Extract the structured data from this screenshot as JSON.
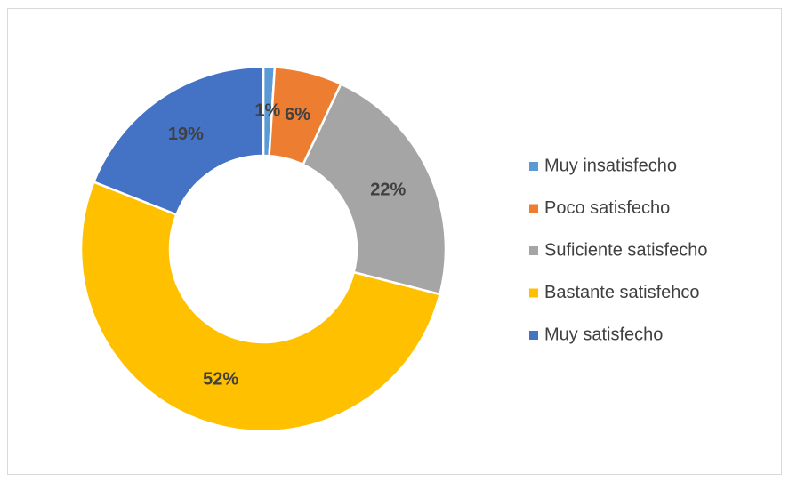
{
  "chart_data": {
    "type": "donut",
    "categories": [
      "Muy insatisfecho",
      "Poco satisfecho",
      "Suficiente satisfecho",
      "Bastante satisfehco",
      "Muy satisfecho"
    ],
    "values": [
      1,
      6,
      22,
      52,
      19
    ],
    "value_labels": [
      "1%",
      "6%",
      "22%",
      "52%",
      "19%"
    ],
    "colors": [
      "#5b9bd5",
      "#ed7d31",
      "#a5a5a5",
      "#ffc000",
      "#4472c4"
    ],
    "legend": "right"
  }
}
